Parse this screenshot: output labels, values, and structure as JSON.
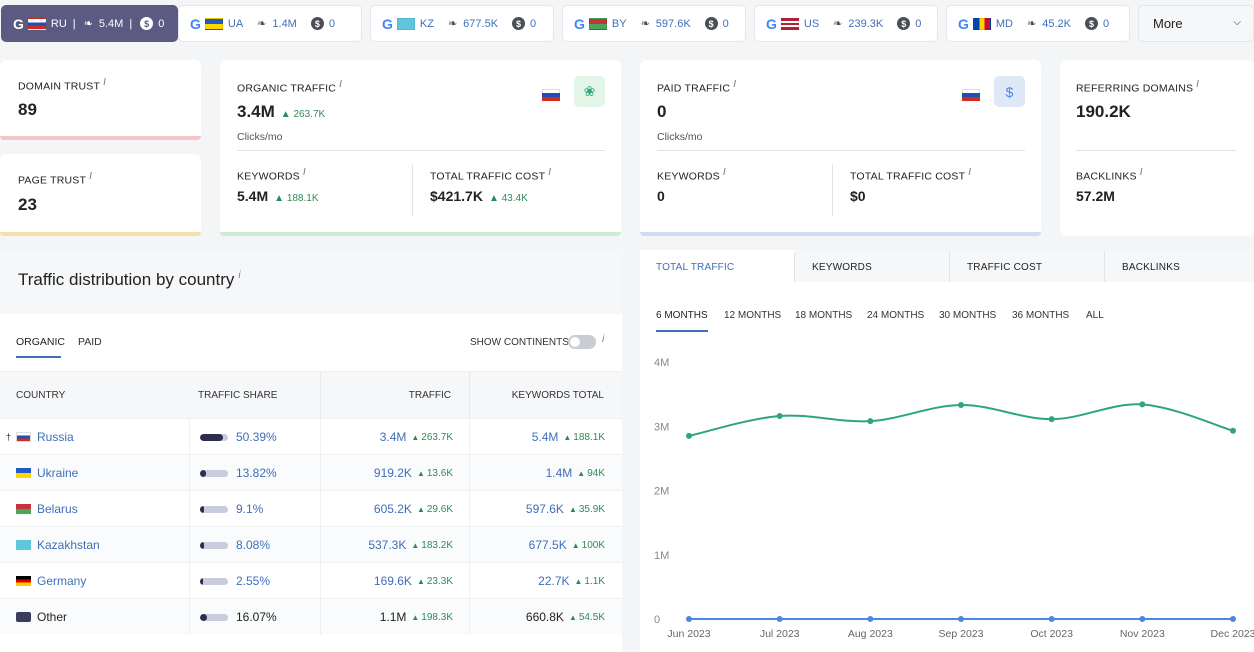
{
  "databases": [
    {
      "engine": "G",
      "code": "RU",
      "keywords": "5.4M",
      "paid": "0",
      "flag_colors": [
        "#ffffff",
        "#1c4fb8",
        "#d52b1e"
      ],
      "active": true
    },
    {
      "engine": "G",
      "code": "UA",
      "keywords": "1.4M",
      "paid": "0",
      "flag_colors": [
        "#1e5bc6",
        "#ffd500"
      ],
      "active": false
    },
    {
      "engine": "G",
      "code": "KZ",
      "keywords": "677.5K",
      "paid": "0",
      "flag_colors": [
        "#5fc6dc"
      ],
      "active": false
    },
    {
      "engine": "G",
      "code": "BY",
      "keywords": "597.6K",
      "paid": "0",
      "flag_colors": [
        "#c8313e",
        "#4aa657"
      ],
      "active": false
    },
    {
      "engine": "G",
      "code": "US",
      "keywords": "239.3K",
      "paid": "0",
      "flag_colors": [
        "#b22234",
        "#3c3b6e"
      ],
      "active": false
    },
    {
      "engine": "G",
      "code": "MD",
      "keywords": "45.2K",
      "paid": "0",
      "flag_colors": [
        "#0046ae",
        "#ffd200",
        "#cc092f"
      ],
      "active": false
    }
  ],
  "more_label": "More",
  "domain_trust": {
    "label": "DOMAIN TRUST",
    "info": "i",
    "value": "89"
  },
  "page_trust": {
    "label": "PAGE TRUST",
    "info": "i",
    "value": "23"
  },
  "organic": {
    "label": "ORGANIC TRAFFIC",
    "info": "i",
    "value": "3.4M",
    "delta": "263.7K",
    "unit": "Clicks/mo",
    "keywords_label": "KEYWORDS",
    "keywords_value": "5.4M",
    "keywords_delta": "188.1K",
    "cost_label": "TOTAL TRAFFIC COST",
    "cost_value": "$421.7K",
    "cost_delta": "43.4K"
  },
  "paid": {
    "label": "PAID TRAFFIC",
    "info": "i",
    "value": "0",
    "unit": "Clicks/mo",
    "keywords_label": "KEYWORDS",
    "keywords_value": "0",
    "cost_label": "TOTAL TRAFFIC COST",
    "cost_value": "$0",
    "icon_label": "$"
  },
  "referring": {
    "label": "REFERRING DOMAINS",
    "info": "i",
    "value": "190.2K",
    "backlinks_label": "BACKLINKS",
    "backlinks_value": "57.2M"
  },
  "distribution": {
    "title": "Traffic distribution by country",
    "info": "i",
    "tabs": [
      "ORGANIC",
      "PAID"
    ],
    "show_continents": "SHOW CONTINENTS",
    "columns": [
      "COUNTRY",
      "TRAFFIC SHARE",
      "TRAFFIC",
      "KEYWORDS TOTAL"
    ],
    "rows": [
      {
        "pin": "📌",
        "country": "Russia",
        "share": "50.39%",
        "share_frac": 0.5039,
        "traffic": "3.4M",
        "traffic_delta": "263.7K",
        "keywords": "5.4M",
        "keywords_delta": "188.1K",
        "flag_colors": [
          "#ffffff",
          "#1c4fb8",
          "#d52b1e"
        ]
      },
      {
        "pin": "",
        "country": "Ukraine",
        "share": "13.82%",
        "share_frac": 0.1382,
        "traffic": "919.2K",
        "traffic_delta": "13.6K",
        "keywords": "1.4M",
        "keywords_delta": "94K",
        "flag_colors": [
          "#1e5bc6",
          "#ffd500"
        ]
      },
      {
        "pin": "",
        "country": "Belarus",
        "share": "9.1%",
        "share_frac": 0.091,
        "traffic": "605.2K",
        "traffic_delta": "29.6K",
        "keywords": "597.6K",
        "keywords_delta": "35.9K",
        "flag_colors": [
          "#c8313e",
          "#4aa657"
        ]
      },
      {
        "pin": "",
        "country": "Kazakhstan",
        "share": "8.08%",
        "share_frac": 0.0808,
        "traffic": "537.3K",
        "traffic_delta": "183.2K",
        "keywords": "677.5K",
        "keywords_delta": "100K",
        "flag_colors": [
          "#5fc6dc"
        ]
      },
      {
        "pin": "",
        "country": "Germany",
        "share": "2.55%",
        "share_frac": 0.0255,
        "traffic": "169.6K",
        "traffic_delta": "23.3K",
        "keywords": "22.7K",
        "keywords_delta": "1.1K",
        "flag_colors": [
          "#000000",
          "#dd0000",
          "#ffce00"
        ]
      },
      {
        "pin": "",
        "country": "Other",
        "share": "16.07%",
        "share_frac": 0.1607,
        "traffic": "1.1M",
        "traffic_delta": "198.3K",
        "keywords": "660.8K",
        "keywords_delta": "54.5K",
        "flag_colors": [
          "#3a3d5c"
        ]
      }
    ]
  },
  "chart_tabs": [
    "TOTAL TRAFFIC",
    "KEYWORDS",
    "TRAFFIC COST",
    "BACKLINKS"
  ],
  "periods": [
    "6 MONTHS",
    "12 MONTHS",
    "18 MONTHS",
    "24 MONTHS",
    "30 MONTHS",
    "36 MONTHS",
    "ALL"
  ],
  "colors": {
    "accent": "#3f6fb7",
    "organic_line": "#2ea67a",
    "paid_line": "#4a87e6",
    "up": "#2e8b57"
  },
  "chart_data": {
    "type": "line",
    "categories": [
      "Jun 2023",
      "Jul 2023",
      "Aug 2023",
      "Sep 2023",
      "Oct 2023",
      "Nov 2023",
      "Dec 2023"
    ],
    "y_ticks": [
      "0",
      "1M",
      "2M",
      "3M",
      "4M"
    ],
    "ylim": [
      0,
      4000000
    ],
    "series": [
      {
        "values": [
          2850000,
          3160000,
          3080000,
          3330000,
          3110000,
          3340000,
          2930000
        ]
      },
      {
        "values": [
          0,
          0,
          0,
          0,
          0,
          0,
          0
        ]
      }
    ]
  }
}
